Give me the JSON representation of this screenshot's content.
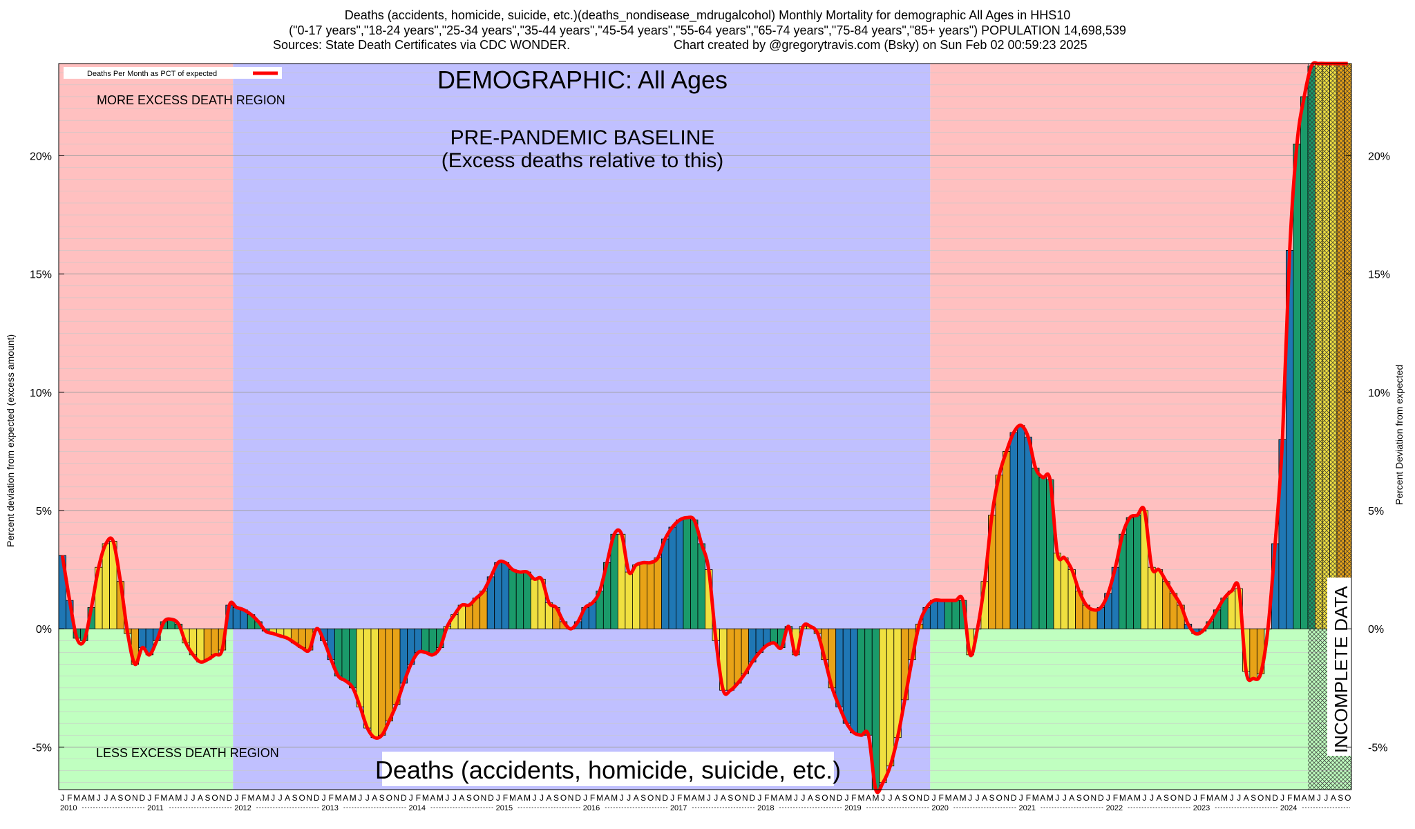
{
  "header": {
    "line1": "Deaths (accidents, homicide, suicide, etc.)(deaths_nondisease_mdrugalcohol) Monthly Mortality for demographic All Ages in HHS10",
    "line2": "(\"0-17 years\",\"18-24 years\",\"25-34 years\",\"35-44 years\",\"45-54 years\",\"55-64 years\",\"65-74 years\",\"75-84 years\",\"85+ years\") POPULATION 14,698,539",
    "line3_left": "Sources: State Death Certificates via CDC WONDER.",
    "line3_right": "Chart created by @gregorytravis.com (Bsky) on Sun Feb 02 00:59:23 2025"
  },
  "labels": {
    "legend": "Deaths Per Month as PCT of expected",
    "demographic": "DEMOGRAPHIC: All Ages",
    "baseline_line1": "PRE-PANDEMIC BASELINE",
    "baseline_line2": "(Excess deaths relative to this)",
    "more_region": "MORE EXCESS DEATH REGION",
    "less_region": "LESS EXCESS DEATH REGION",
    "bottom_title": "Deaths (accidents, homicide, suicide, etc.)",
    "incomplete": "INCOMPLETE DATA",
    "y_left": "Percent deviation from expected (excess amount)",
    "y_right": "Percent Deviation from expected"
  },
  "colors": {
    "more_region": "#ffc0c0",
    "less_region": "#c0ffc0",
    "baseline_region": "#c0c0ff",
    "line": "#ff0000",
    "season_winter": "#1f77b4",
    "season_spring": "#1a9a6a",
    "season_summer": "#f0e040",
    "season_fall": "#e8a317",
    "incomplete_hatch": "#888888"
  },
  "chart_data": {
    "type": "bar",
    "x_unit": "month",
    "start": "2010-01",
    "end": "2024-10",
    "ylim": [
      -6.8,
      23.9
    ],
    "yticks": [
      -5,
      0,
      5,
      10,
      15,
      20
    ],
    "ytick_labels": [
      "-5%",
      "0%",
      "5%",
      "10%",
      "15%",
      "20%"
    ],
    "month_letters": [
      "J",
      "F",
      "M",
      "A",
      "M",
      "J",
      "J",
      "A",
      "S",
      "O",
      "N",
      "D"
    ],
    "years": [
      "2010",
      "2011",
      "2012",
      "2013",
      "2014",
      "2015",
      "2016",
      "2017",
      "2018",
      "2019",
      "2020",
      "2021",
      "2022",
      "2023",
      "2024"
    ],
    "baseline_period": [
      "2012-01",
      "2019-12"
    ],
    "incomplete_from": "2024-05",
    "series": [
      {
        "name": "Deaths Per Month as PCT of expected",
        "values": [
          3.1,
          1.2,
          -0.4,
          -0.5,
          0.9,
          2.6,
          3.6,
          3.7,
          2.0,
          -0.2,
          -1.5,
          -0.8,
          -1.1,
          -0.5,
          0.3,
          0.4,
          0.2,
          -0.6,
          -1.1,
          -1.4,
          -1.3,
          -1.1,
          -0.9,
          1.0,
          0.9,
          0.8,
          0.6,
          0.3,
          -0.1,
          -0.2,
          -0.3,
          -0.4,
          -0.6,
          -0.8,
          -0.9,
          0.0,
          -0.5,
          -1.3,
          -2.0,
          -2.2,
          -2.5,
          -3.3,
          -4.2,
          -4.6,
          -4.5,
          -3.9,
          -3.2,
          -2.3,
          -1.5,
          -1.0,
          -1.0,
          -1.1,
          -0.8,
          0.1,
          0.6,
          1.0,
          1.0,
          1.3,
          1.6,
          2.2,
          2.8,
          2.8,
          2.5,
          2.4,
          2.4,
          2.1,
          2.1,
          1.1,
          0.9,
          0.3,
          0.0,
          0.3,
          0.9,
          1.1,
          1.6,
          2.8,
          4.0,
          4.0,
          2.4,
          2.7,
          2.8,
          2.8,
          3.0,
          3.8,
          4.3,
          4.6,
          4.7,
          4.6,
          3.6,
          2.5,
          -0.5,
          -2.6,
          -2.6,
          -2.3,
          -1.9,
          -1.4,
          -1.0,
          -0.7,
          -0.6,
          -0.8,
          0.1,
          -1.1,
          0.1,
          0.1,
          -0.2,
          -1.3,
          -2.5,
          -3.3,
          -4.0,
          -4.4,
          -4.5,
          -4.5,
          -6.8,
          -6.5,
          -5.8,
          -4.6,
          -3.0,
          -1.3,
          0.2,
          0.9,
          1.2,
          1.2,
          1.2,
          1.2,
          1.2,
          -1.1,
          0.0,
          2.0,
          4.8,
          6.5,
          7.5,
          8.3,
          8.6,
          8.1,
          6.8,
          6.4,
          6.3,
          3.2,
          3.0,
          2.5,
          1.6,
          1.0,
          0.8,
          0.9,
          1.5,
          2.6,
          4.0,
          4.7,
          4.8,
          5.0,
          2.6,
          2.5,
          2.0,
          1.5,
          1.0,
          0.2,
          -0.2,
          -0.1,
          0.3,
          0.8,
          1.3,
          1.6,
          1.7,
          -1.8,
          -2.1,
          -1.9,
          0.0,
          3.6,
          8.0,
          16.0,
          20.5,
          22.5,
          23.8,
          23.9,
          23.9,
          23.9,
          23.9,
          23.9
        ]
      }
    ]
  }
}
